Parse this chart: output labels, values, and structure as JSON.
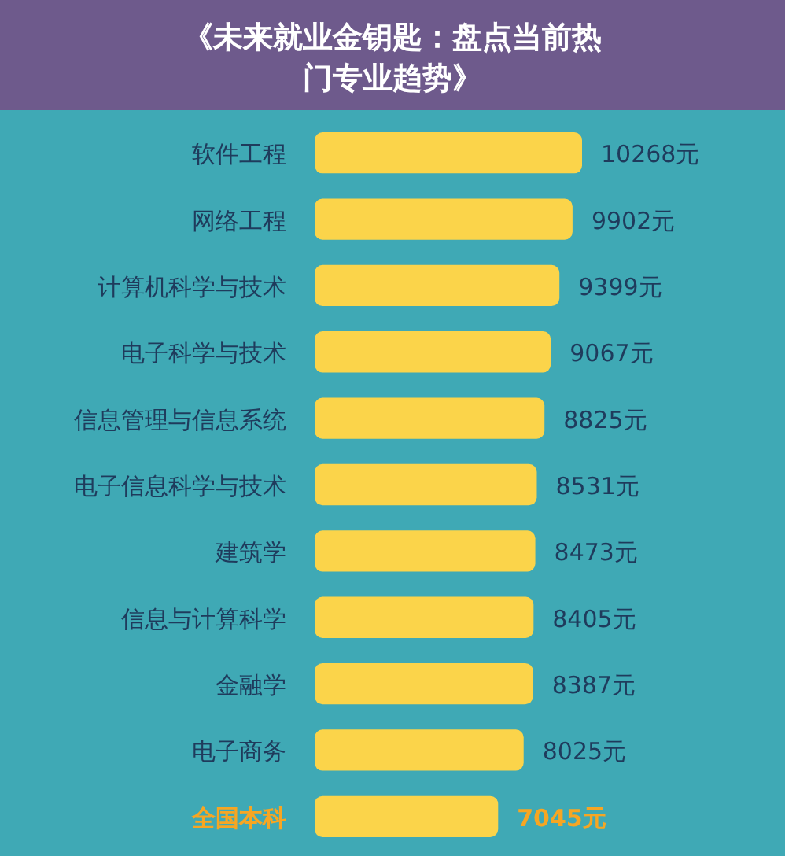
{
  "chart_data": {
    "type": "bar",
    "orientation": "horizontal",
    "title": "《未来就业金钥匙：盘点当前热门专业趋势》",
    "categories": [
      "软件工程",
      "网络工程",
      "计算机科学与技术",
      "电子科学与技术",
      "信息管理与信息系统",
      "电子信息科学与技术",
      "建筑学",
      "信息与计算科学",
      "金融学",
      "电子商务",
      "全国本科"
    ],
    "values": [
      10268,
      9902,
      9399,
      9067,
      8825,
      8531,
      8473,
      8405,
      8387,
      8025,
      7045
    ],
    "value_labels": [
      "10268元",
      "9902元",
      "9399元",
      "9067元",
      "8825元",
      "8531元",
      "8473元",
      "8405元",
      "8387元",
      "8025元",
      "7045元"
    ],
    "colors": [
      "#fbd44a",
      "#fbd44a",
      "#fbd44a",
      "#fbd44a",
      "#fbd44a",
      "#fbd44a",
      "#fbd44a",
      "#fbd44a",
      "#fbd44a",
      "#fbd44a",
      "#fbd44a"
    ]
  }
}
